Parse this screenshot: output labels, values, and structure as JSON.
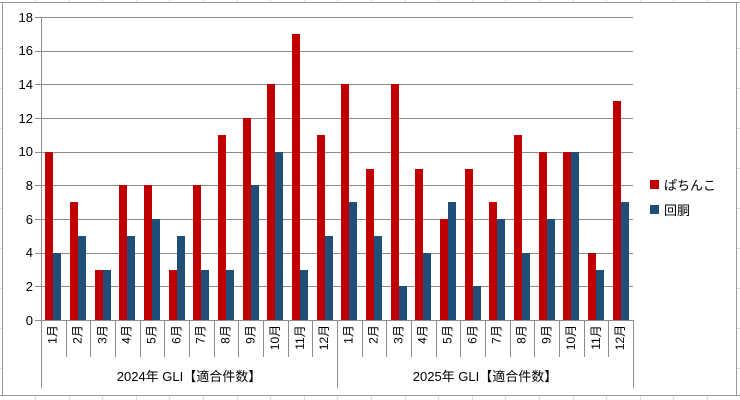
{
  "chart_data": {
    "type": "bar",
    "title": "",
    "y_axis": {
      "min": 0,
      "max": 18,
      "step": 2,
      "ticks": [
        0,
        2,
        4,
        6,
        8,
        10,
        12,
        14,
        16,
        18
      ]
    },
    "x_axis": {
      "month_labels": [
        "1月",
        "2月",
        "3月",
        "4月",
        "5月",
        "6月",
        "7月",
        "8月",
        "9月",
        "10月",
        "11月",
        "12月"
      ],
      "group_labels": [
        "2024年 GLI【適合件数】",
        "2025年 GLI【適合件数】"
      ]
    },
    "series": [
      {
        "name": "ぱちんこ",
        "id": "pachinko",
        "color": "#C00000",
        "values": [
          [
            10,
            7,
            3,
            8,
            8,
            3,
            8,
            11,
            12,
            14,
            17,
            11
          ],
          [
            14,
            9,
            14,
            9,
            6,
            9,
            7,
            11,
            10,
            10,
            4,
            13
          ]
        ]
      },
      {
        "name": "回胴",
        "id": "kaidou",
        "color": "#1F4E79",
        "values": [
          [
            4,
            5,
            3,
            5,
            6,
            5,
            3,
            3,
            8,
            10,
            3,
            5
          ],
          [
            7,
            5,
            2,
            4,
            7,
            2,
            6,
            4,
            6,
            10,
            3,
            7
          ]
        ]
      }
    ],
    "legend": {
      "position": "right",
      "entries": [
        "ぱちんこ",
        "回胴"
      ]
    },
    "grid": true
  },
  "colors": {
    "gridline": "#8c8c8c",
    "axis": "#8c8c8c",
    "chart_border": "#9a9a9a",
    "worksheet_tick": "#d9d9d9",
    "pachinko": "#C00000",
    "kaidou": "#1F4E79"
  }
}
